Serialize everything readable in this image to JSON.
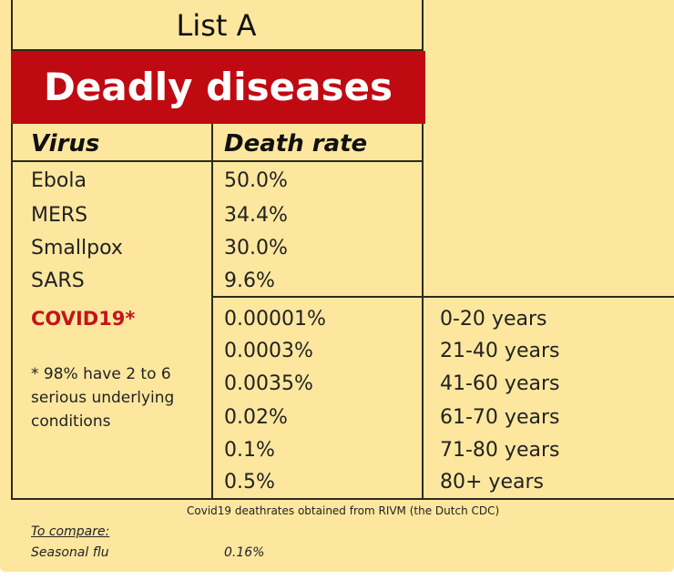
{
  "list_label": "List A",
  "banner": "Deadly diseases",
  "headers": {
    "virus": "Virus",
    "death_rate": "Death rate"
  },
  "diseases": [
    {
      "name": "Ebola",
      "rate": "50.0%"
    },
    {
      "name": "MERS",
      "rate": "34.4%"
    },
    {
      "name": "Smallpox",
      "rate": "30.0%"
    },
    {
      "name": "SARS",
      "rate": "9.6%"
    }
  ],
  "covid": {
    "name": "COVID19*",
    "note": "* 98% have 2 to 6 serious underlying conditions",
    "age_rates": [
      {
        "rate": "0.00001%",
        "age": "0-20 years"
      },
      {
        "rate": "0.0003%",
        "age": "21-40 years"
      },
      {
        "rate": "0.0035%",
        "age": "41-60 years"
      },
      {
        "rate": "0.02%",
        "age": "61-70 years"
      },
      {
        "rate": "0.1%",
        "age": "71-80 years"
      },
      {
        "rate": "0.5%",
        "age": "80+ years"
      }
    ]
  },
  "source_note": "Covid19 deathrates obtained from RIVM (the Dutch CDC)",
  "compare": {
    "label": "To compare:",
    "name": "Seasonal flu",
    "rate": "0.16%"
  },
  "colors": {
    "background": "#fde79f",
    "banner": "#c00a12",
    "covid": "#c4151b",
    "lines": "#2e2a1c"
  }
}
